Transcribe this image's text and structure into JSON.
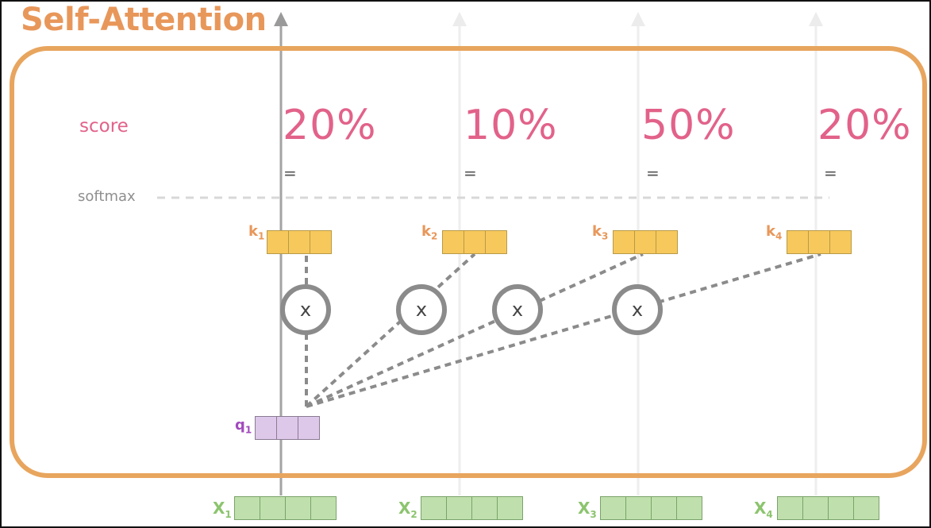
{
  "title": "Self-Attention",
  "row_labels": {
    "score": "score",
    "softmax": "softmax"
  },
  "scores": [
    "20%",
    "10%",
    "50%",
    "20%"
  ],
  "equals": "=",
  "multiply_symbol": "x",
  "keys": [
    {
      "letter": "k",
      "index": "1"
    },
    {
      "letter": "k",
      "index": "2"
    },
    {
      "letter": "k",
      "index": "3"
    },
    {
      "letter": "k",
      "index": "4"
    }
  ],
  "query": {
    "letter": "q",
    "index": "1"
  },
  "inputs": [
    {
      "letter": "X",
      "index": "1"
    },
    {
      "letter": "X",
      "index": "2"
    },
    {
      "letter": "X",
      "index": "3"
    },
    {
      "letter": "X",
      "index": "4"
    }
  ],
  "colors": {
    "title": "#e8975a",
    "panel_border": "#e8a55e",
    "score": "#e2628a",
    "key_vector": "#f7c85b",
    "query_vector": "#dec8ea",
    "input_vector": "#bfe0ac",
    "connector": "#8b8b8b"
  }
}
